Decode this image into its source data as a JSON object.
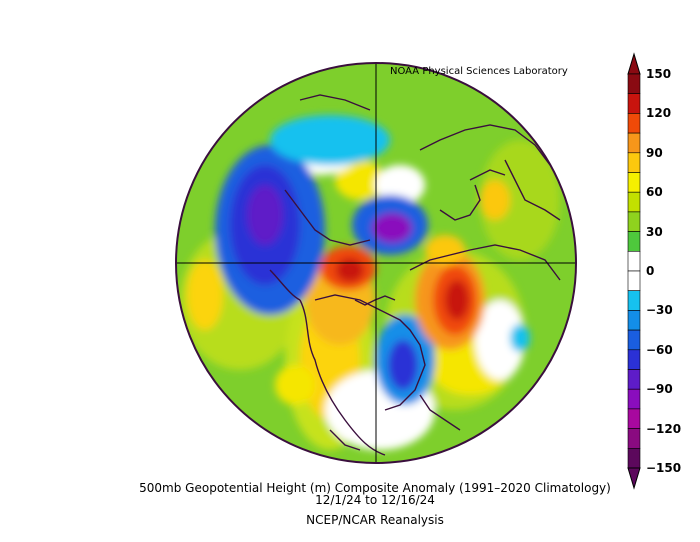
{
  "source": "NOAA Physical Sciences Laboratory",
  "caption": {
    "line1": "500mb Geopotential Height (m) Composite Anomaly (1991–2020 Climatology)",
    "line2": "12/1/24   to 12/16/24",
    "line3": "NCEP/NCAR Reanalysis"
  },
  "colorbar": {
    "labels": [
      "150",
      "120",
      "90",
      "60",
      "30",
      "0",
      "−30",
      "−60",
      "−90",
      "−120",
      "−150"
    ],
    "colors": [
      "#8a0a12",
      "#c8140e",
      "#f04a08",
      "#f7961a",
      "#fcc80e",
      "#f5f000",
      "#c2e000",
      "#8fd21e",
      "#4ec83c",
      "#ffffff",
      "#ffffff",
      "#16c1ef",
      "#138ee8",
      "#1a5ee0",
      "#2b31d6",
      "#5e1cc8",
      "#8a0dbd",
      "#a8089f",
      "#8a0a80",
      "#5c085c"
    ]
  },
  "map_colors": {
    "background_fill": "#7ecf2c",
    "coast": "#3a0f3d",
    "grid": "#000000"
  }
}
